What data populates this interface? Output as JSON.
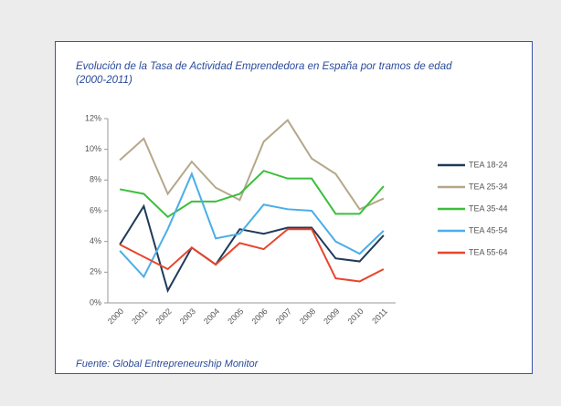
{
  "chart_data": {
    "type": "line",
    "title": "Evolución de la Tasa de Actividad Emprendedora en España por tramos de edad (2000-2011)",
    "source": "Fuente: Global Entrepreneurship Monitor",
    "categories": [
      "2000",
      "2001",
      "2002",
      "2003",
      "2004",
      "2005",
      "2006",
      "2007",
      "2008",
      "2009",
      "2010",
      "2011"
    ],
    "series": [
      {
        "name": "TEA 18-24",
        "color": "#1f3b5a",
        "values": [
          3.8,
          6.3,
          0.8,
          3.6,
          2.5,
          4.8,
          4.5,
          4.9,
          4.9,
          2.9,
          2.7,
          4.4
        ]
      },
      {
        "name": "TEA 25-34",
        "color": "#b5a78a",
        "values": [
          9.3,
          10.7,
          7.1,
          9.2,
          7.5,
          6.7,
          10.5,
          11.9,
          9.4,
          8.4,
          6.1,
          6.8
        ]
      },
      {
        "name": "TEA 35-44",
        "color": "#3cbf3c",
        "values": [
          7.4,
          7.1,
          5.6,
          6.6,
          6.6,
          7.1,
          8.6,
          8.1,
          8.1,
          5.8,
          5.8,
          7.6
        ]
      },
      {
        "name": "TEA 45-54",
        "color": "#4aaee8",
        "values": [
          3.4,
          1.7,
          4.8,
          8.4,
          4.2,
          4.5,
          6.4,
          6.1,
          6.0,
          4.0,
          3.2,
          4.7
        ]
      },
      {
        "name": "TEA 55-64",
        "color": "#e8452c",
        "values": [
          3.8,
          3.0,
          2.2,
          3.6,
          2.5,
          3.9,
          3.5,
          4.8,
          4.8,
          1.6,
          1.4,
          2.2
        ]
      }
    ],
    "ylim": [
      0,
      12
    ],
    "yticks": [
      {
        "value": 0,
        "label": "0%"
      },
      {
        "value": 2,
        "label": "2%"
      },
      {
        "value": 4,
        "label": "4%"
      },
      {
        "value": 6,
        "label": "6%"
      },
      {
        "value": 8,
        "label": "8%"
      },
      {
        "value": 10,
        "label": "10%"
      },
      {
        "value": 12,
        "label": "12%"
      }
    ],
    "grid": false,
    "legend": "right"
  }
}
